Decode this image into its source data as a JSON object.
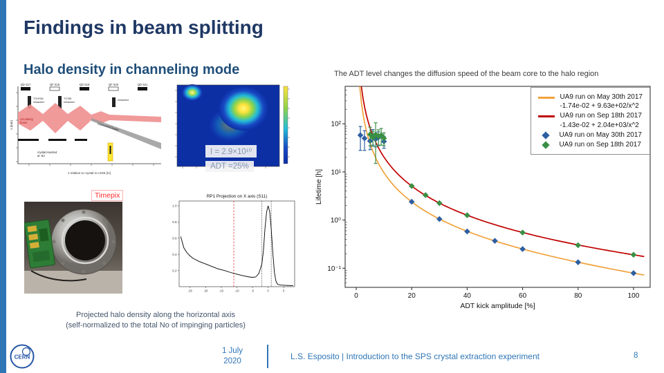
{
  "slide": {
    "title": "Findings in beam splitting",
    "subtitle": "Halo density in channeling mode",
    "right_caption": "The ADT level changes the diffusion speed of the beam core to the halo region",
    "annotation_intensity": "I = 2.9×10¹⁰",
    "annotation_adt": "ADT =25%",
    "timepix_label": "Timepix",
    "bottom_caption_line1": "Projected halo density along the horizontal axis",
    "bottom_caption_line2": "(self-normalized to the total No of impinging particles)"
  },
  "optics": {
    "magnets": [
      "QD 517",
      "QF 518",
      "QD 519",
      "QF 520",
      "QD 521"
    ],
    "coll1a": "TCHSW",
    "coll1b": "retracted",
    "coll2a": "TCSM",
    "coll2b": "retracted",
    "coll3": "retracted",
    "circulating1": "circulating",
    "circulating2": "beam",
    "channeled": "channeled beam",
    "crystal1": "crystal inserted",
    "crystal2": "at -6σ",
    "xlabel": "s relative to crystal in LSS5 [m]",
    "ylabel": "x [mm]"
  },
  "footer": {
    "date_line1": "1 July",
    "date_line2": "2020",
    "credit": "L.S. Esposito | Introduction to the SPS crystal extraction experiment",
    "page": "8",
    "logo_text": "CERN"
  },
  "colors": {
    "accent_blue": "#2e75b6",
    "title_navy": "#1f3864",
    "timepix_red": "#ff2a2a",
    "annotation_text": "#8496b0"
  },
  "chart_data": [
    {
      "type": "scatter",
      "title": "",
      "xlabel": "ADT kick amplitude [%]",
      "ylabel": "Lifetime [h]",
      "xlim": [
        -4,
        106
      ],
      "ylog": true,
      "ylim": [
        0.04,
        600
      ],
      "grid": false,
      "legend_position": "upper right",
      "xticks": [
        0,
        20,
        40,
        60,
        80,
        100
      ],
      "yticks": [
        {
          "v": 100,
          "label": "10²"
        },
        {
          "v": 10,
          "label": "10¹"
        },
        {
          "v": 1,
          "label": "10⁰"
        },
        {
          "v": 0.1,
          "label": "10⁻¹"
        }
      ],
      "fits": [
        {
          "label": "UA9 run on May 30th 2017",
          "formula": "-1.74e-02 + 9.63e+02/x^2",
          "a": -0.0174,
          "b": 963,
          "color": "#f2a23c"
        },
        {
          "label": "UA9 run on Sep 18th 2017",
          "formula": "-1.43e-02 + 2.04e+03/x^2",
          "a": -0.0143,
          "b": 2040,
          "color": "#c00000"
        }
      ],
      "series": [
        {
          "name": "UA9 run on May 30th 2017",
          "marker": "diamond",
          "color": "#2e5fa3",
          "points": [
            [
              1.5,
              58,
              30
            ],
            [
              3,
              50,
              22
            ],
            [
              5,
              44,
              15
            ],
            [
              6,
              56,
              20
            ],
            [
              7,
              48,
              15
            ],
            [
              8,
              52,
              16
            ],
            [
              10,
              43,
              12
            ],
            [
              20,
              2.4,
              0
            ],
            [
              30,
              1.05,
              0
            ],
            [
              40,
              0.58,
              0
            ],
            [
              50,
              0.37,
              0
            ],
            [
              60,
              0.25,
              0
            ],
            [
              80,
              0.133,
              0
            ],
            [
              100,
              0.079,
              0
            ]
          ]
        },
        {
          "name": "UA9 run on Sep 18th 2017",
          "marker": "diamond",
          "color": "#3a8f44",
          "points": [
            [
              5,
              60,
              25
            ],
            [
              6,
              52,
              18
            ],
            [
              7,
              60,
              45
            ],
            [
              8,
              55,
              20
            ],
            [
              9,
              58,
              22
            ],
            [
              10,
              50,
              15
            ],
            [
              20,
              5.1,
              0
            ],
            [
              25,
              3.3,
              0
            ],
            [
              30,
              2.25,
              0
            ],
            [
              40,
              1.26,
              0
            ],
            [
              60,
              0.55,
              0
            ],
            [
              80,
              0.3,
              0
            ],
            [
              100,
              0.19,
              0
            ]
          ]
        }
      ]
    },
    {
      "type": "line",
      "title": "RP1 Projection on X axis (S11)",
      "xlabel": "",
      "ylabel": "",
      "xlim": [
        -28.5,
        8.5
      ],
      "ylim": [
        0,
        1.06
      ],
      "yticks": [
        0.2,
        0.4,
        0.6,
        0.8,
        1.0
      ],
      "xticks": [
        -25,
        -20,
        -15,
        -10,
        -5,
        0,
        5
      ],
      "red_dashed_x": -11,
      "black_dotted_x": [
        -2,
        1
      ],
      "points": [
        [
          -28,
          0.62
        ],
        [
          -27,
          0.48
        ],
        [
          -26,
          0.42
        ],
        [
          -25,
          0.38
        ],
        [
          -24,
          0.35
        ],
        [
          -22,
          0.31
        ],
        [
          -20,
          0.28
        ],
        [
          -18,
          0.25
        ],
        [
          -16,
          0.22
        ],
        [
          -14,
          0.2
        ],
        [
          -12,
          0.175
        ],
        [
          -10,
          0.155
        ],
        [
          -8,
          0.135
        ],
        [
          -6,
          0.12
        ],
        [
          -5,
          0.115
        ],
        [
          -4,
          0.12
        ],
        [
          -3,
          0.16
        ],
        [
          -2,
          0.28
        ],
        [
          -1.5,
          0.45
        ],
        [
          -1,
          0.72
        ],
        [
          -0.5,
          0.92
        ],
        [
          0,
          1.0
        ],
        [
          0.5,
          0.93
        ],
        [
          1,
          0.72
        ],
        [
          1.5,
          0.42
        ],
        [
          2,
          0.18
        ],
        [
          2.5,
          0.07
        ],
        [
          3,
          0.03
        ],
        [
          4,
          0.02
        ],
        [
          6,
          0.015
        ],
        [
          8,
          0.012
        ]
      ]
    }
  ]
}
